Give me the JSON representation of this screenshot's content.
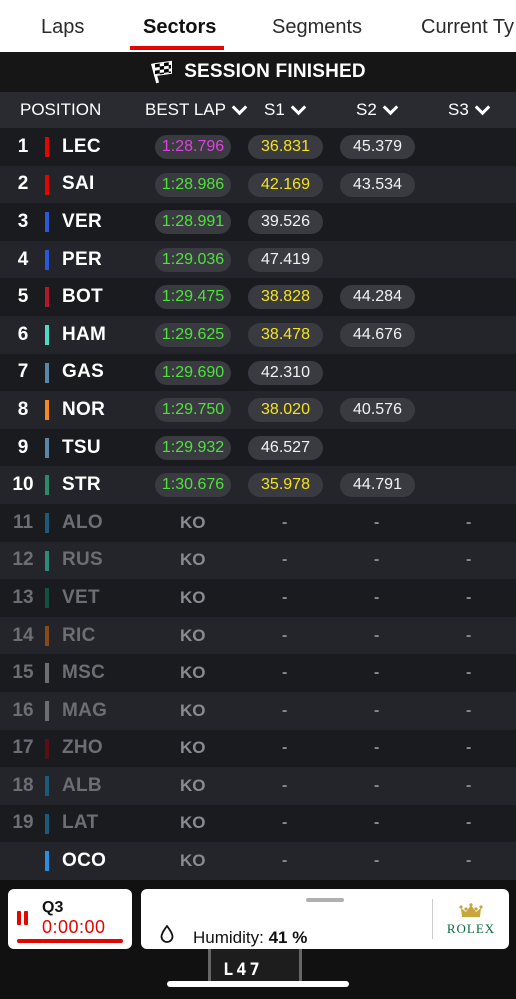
{
  "tabs": [
    {
      "label": "Laps",
      "active": false
    },
    {
      "label": "Sectors",
      "active": true
    },
    {
      "label": "Segments",
      "active": false
    },
    {
      "label": "Current Ty",
      "active": false
    }
  ],
  "banner": {
    "text": "SESSION FINISHED",
    "icon": "checkered-flag-icon"
  },
  "columns": {
    "position": "POSITION",
    "best_lap": "BEST LAP",
    "s1": "S1",
    "s2": "S2",
    "s3": "S3"
  },
  "rows": [
    {
      "pos": "1",
      "driver": "LEC",
      "team_color": "#e10600",
      "best": "1:28.796",
      "best_color": "purple",
      "s1": "36.831",
      "s1_color": "yellow",
      "s2": "45.379",
      "s2_color": "white"
    },
    {
      "pos": "2",
      "driver": "SAI",
      "team_color": "#e10600",
      "best": "1:28.986",
      "best_color": "green",
      "s1": "42.169",
      "s1_color": "yellow",
      "s2": "43.534",
      "s2_color": "white"
    },
    {
      "pos": "3",
      "driver": "VER",
      "team_color": "#2b58d6",
      "best": "1:28.991",
      "best_color": "green",
      "s1": "39.526",
      "s1_color": "white",
      "s2": ""
    },
    {
      "pos": "4",
      "driver": "PER",
      "team_color": "#2b58d6",
      "best": "1:29.036",
      "best_color": "green",
      "s1": "47.419",
      "s1_color": "white",
      "s2": ""
    },
    {
      "pos": "5",
      "driver": "BOT",
      "team_color": "#b1182a",
      "best": "1:29.475",
      "best_color": "green",
      "s1": "38.828",
      "s1_color": "yellow",
      "s2": "44.284",
      "s2_color": "white"
    },
    {
      "pos": "6",
      "driver": "HAM",
      "team_color": "#4fd8c4",
      "best": "1:29.625",
      "best_color": "green",
      "s1": "38.478",
      "s1_color": "yellow",
      "s2": "44.676",
      "s2_color": "white"
    },
    {
      "pos": "7",
      "driver": "GAS",
      "team_color": "#5a86a8",
      "best": "1:29.690",
      "best_color": "green",
      "s1": "42.310",
      "s1_color": "white",
      "s2": ""
    },
    {
      "pos": "8",
      "driver": "NOR",
      "team_color": "#f58a1f",
      "best": "1:29.750",
      "best_color": "green",
      "s1": "38.020",
      "s1_color": "yellow",
      "s2": "40.576",
      "s2_color": "white"
    },
    {
      "pos": "9",
      "driver": "TSU",
      "team_color": "#5a86a8",
      "best": "1:29.932",
      "best_color": "green",
      "s1": "46.527",
      "s1_color": "white",
      "s2": ""
    },
    {
      "pos": "10",
      "driver": "STR",
      "team_color": "#2a8a6a",
      "best": "1:30.676",
      "best_color": "green",
      "s1": "35.978",
      "s1_color": "yellow",
      "s2": "44.791",
      "s2_color": "white"
    }
  ],
  "out_rows": [
    {
      "pos": "11",
      "driver": "ALO",
      "team_color": "#1d5a7a"
    },
    {
      "pos": "12",
      "driver": "RUS",
      "team_color": "#2e8a7a"
    },
    {
      "pos": "13",
      "driver": "VET",
      "team_color": "#14503e"
    },
    {
      "pos": "14",
      "driver": "RIC",
      "team_color": "#8a4a18"
    },
    {
      "pos": "15",
      "driver": "MSC",
      "team_color": "#6d6e73"
    },
    {
      "pos": "16",
      "driver": "MAG",
      "team_color": "#6d6e73"
    },
    {
      "pos": "17",
      "driver": "ZHO",
      "team_color": "#5a0f16"
    },
    {
      "pos": "18",
      "driver": "ALB",
      "team_color": "#1d5a7a"
    },
    {
      "pos": "19",
      "driver": "LAT",
      "team_color": "#1d5a7a"
    },
    {
      "pos": "",
      "driver": "OCO",
      "team_color": "#2b8ee0"
    }
  ],
  "out_labels": {
    "best": "KO",
    "sector": "-"
  },
  "session": {
    "name": "Q3",
    "time": "0:00:00",
    "icon": "pause-icon"
  },
  "weather": {
    "label": "Humidity:",
    "value": "41 %",
    "icon": "water-drop-icon"
  },
  "sponsor": {
    "name": "ROLEX",
    "icon": "crown-icon"
  },
  "lap_counter": "L47",
  "colors": {
    "accent": "#e10600",
    "purple": "#e040e0",
    "green": "#4de23a",
    "yellow": "#f4e21c"
  }
}
